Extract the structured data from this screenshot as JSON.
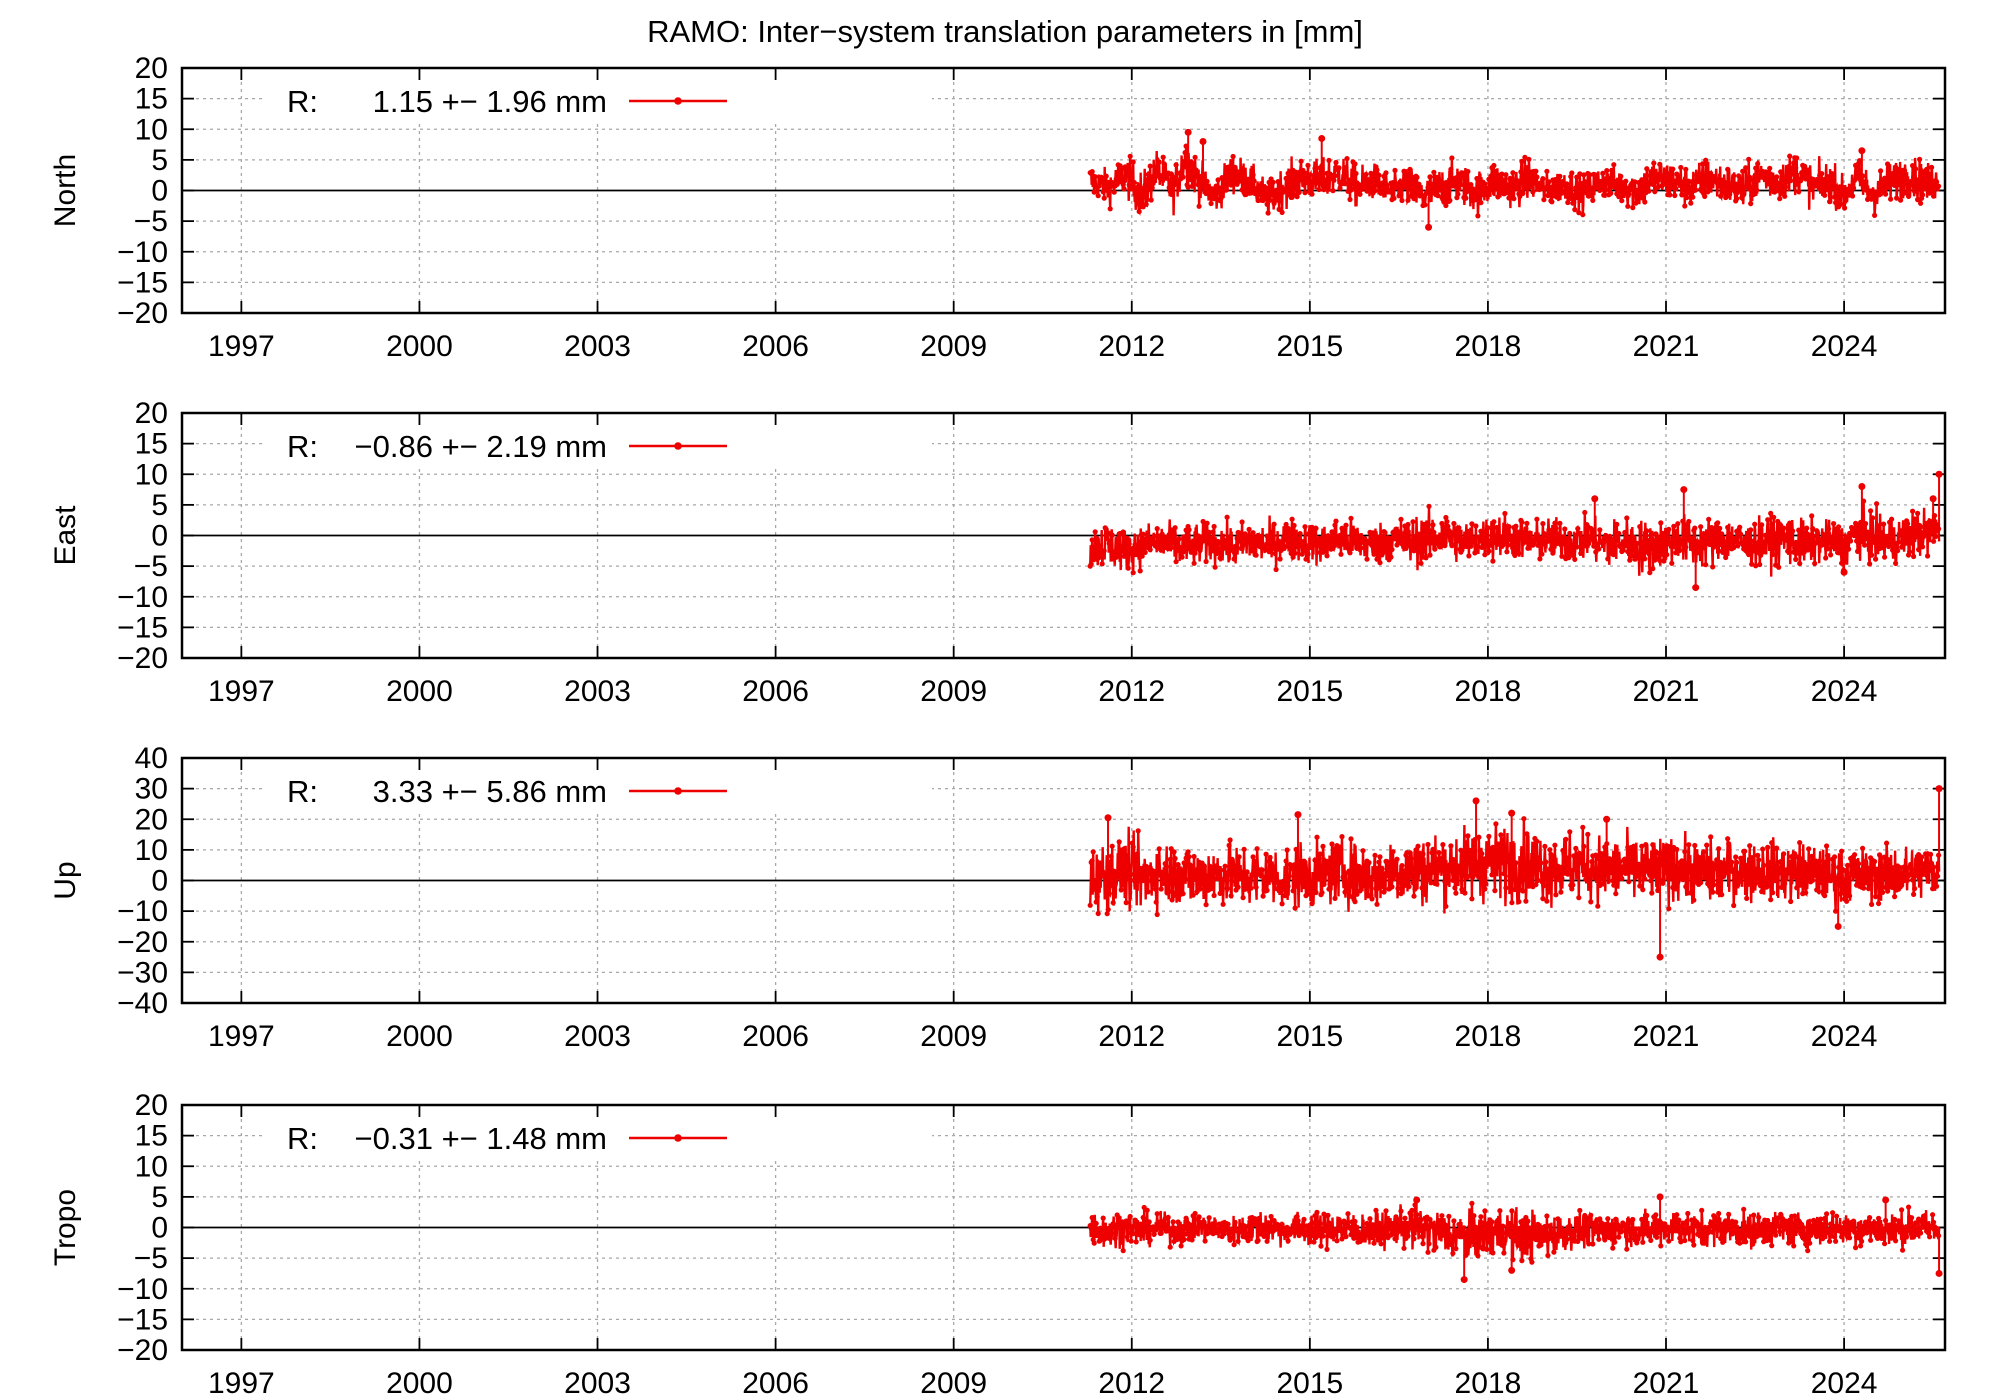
{
  "chart_data": {
    "title": "RAMO: Inter−system translation parameters in [mm]",
    "type": "line",
    "x_ticks": [
      1997,
      2000,
      2003,
      2006,
      2009,
      2012,
      2015,
      2018,
      2021,
      2024
    ],
    "xlim": [
      1996.0,
      2025.7
    ],
    "grid": true,
    "legend_placement": "top-left",
    "series_color": "#ee0000",
    "panels": [
      {
        "ylabel": "North",
        "ylim": [
          -20,
          20
        ],
        "y_ticks": [
          "20",
          "15",
          "10",
          "5",
          "0",
          "−5",
          "−10",
          "−15",
          "−20"
        ],
        "legend": {
          "prefix": "R:",
          "value": "1.15 +− 1.96 mm"
        },
        "series": {
          "name": "R",
          "x": [
            2011.3,
            2011.6,
            2011.9,
            2012.2,
            2012.4,
            2012.7,
            2012.9,
            2013.1,
            2013.4,
            2013.7,
            2014.0,
            2014.3,
            2014.6,
            2014.9,
            2015.2,
            2015.5,
            2015.8,
            2016.1,
            2016.4,
            2016.6,
            2016.9,
            2017.2,
            2017.5,
            2017.8,
            2018.1,
            2018.4,
            2018.7,
            2019.0,
            2019.3,
            2019.6,
            2019.9,
            2020.2,
            2020.5,
            2020.8,
            2021.1,
            2021.4,
            2021.7,
            2022.0,
            2022.3,
            2022.6,
            2022.9,
            2023.2,
            2023.5,
            2023.8,
            2024.0,
            2024.2,
            2024.5,
            2024.8,
            2025.1,
            2025.4,
            2025.6
          ],
          "y": [
            1.5,
            0.5,
            2.5,
            -1.0,
            3.5,
            0.0,
            5.5,
            2.0,
            -1.0,
            3.0,
            1.5,
            -1.5,
            1.0,
            2.0,
            1.5,
            3.0,
            0.5,
            1.5,
            -0.5,
            1.0,
            -1.0,
            0.5,
            1.5,
            -0.5,
            1.5,
            0.5,
            2.0,
            0.0,
            1.0,
            -0.5,
            1.5,
            1.0,
            0.0,
            2.0,
            1.5,
            0.5,
            2.0,
            1.0,
            0.0,
            2.5,
            1.5,
            3.0,
            0.5,
            1.5,
            -1.0,
            2.0,
            -0.5,
            1.5,
            2.5,
            1.0,
            1.5
          ],
          "spread": [
            2.5,
            2.5,
            3.0,
            3.5,
            3.0,
            3.0,
            3.5,
            3.0,
            2.5,
            3.0,
            2.5,
            2.5,
            3.0,
            3.0,
            3.0,
            3.0,
            3.0,
            2.5,
            2.5,
            3.0,
            3.0,
            3.0,
            3.0,
            3.0,
            3.0,
            3.0,
            3.0,
            2.5,
            2.5,
            2.5,
            2.5,
            2.5,
            3.0,
            3.0,
            3.0,
            3.0,
            3.0,
            3.0,
            3.0,
            3.0,
            3.0,
            3.0,
            3.0,
            3.0,
            2.5,
            3.0,
            3.0,
            3.0,
            3.0,
            3.0,
            2.5
          ],
          "outliers": [
            [
              2012.95,
              9.5
            ],
            [
              2013.2,
              8.0
            ],
            [
              2015.2,
              8.5
            ],
            [
              2017.0,
              -6.0
            ],
            [
              2024.3,
              6.5
            ]
          ]
        }
      },
      {
        "ylabel": "East",
        "ylim": [
          -20,
          20
        ],
        "y_ticks": [
          "20",
          "15",
          "10",
          "5",
          "0",
          "−5",
          "−10",
          "−15",
          "−20"
        ],
        "legend": {
          "prefix": "R:",
          "value": "−0.86 +− 2.19 mm"
        },
        "series": {
          "name": "R",
          "x": [
            2011.3,
            2011.6,
            2011.9,
            2012.2,
            2012.5,
            2012.8,
            2013.1,
            2013.4,
            2013.7,
            2014.0,
            2014.3,
            2014.6,
            2014.9,
            2015.2,
            2015.5,
            2015.8,
            2016.1,
            2016.4,
            2016.7,
            2017.0,
            2017.3,
            2017.6,
            2017.9,
            2018.2,
            2018.5,
            2018.8,
            2019.1,
            2019.4,
            2019.7,
            2020.0,
            2020.3,
            2020.6,
            2020.9,
            2021.2,
            2021.5,
            2021.8,
            2022.1,
            2022.4,
            2022.7,
            2023.0,
            2023.3,
            2023.6,
            2023.9,
            2024.0,
            2024.2,
            2024.5,
            2024.8,
            2025.1,
            2025.4,
            2025.6
          ],
          "y": [
            -2.0,
            -1.5,
            -2.5,
            -1.5,
            -1.0,
            -2.0,
            -1.5,
            -1.0,
            -2.0,
            -1.0,
            -1.5,
            -0.5,
            -1.0,
            -1.5,
            -0.5,
            -1.0,
            -1.5,
            -0.5,
            -1.0,
            -0.5,
            0.0,
            -1.0,
            -0.5,
            0.0,
            -0.5,
            -1.0,
            -0.5,
            -1.0,
            -0.5,
            -1.5,
            -1.0,
            -2.0,
            -1.5,
            -0.5,
            -1.5,
            -1.0,
            -0.5,
            -1.5,
            -1.0,
            -0.5,
            -1.5,
            -1.0,
            -1.0,
            -2.0,
            0.5,
            -0.5,
            -1.0,
            0.0,
            0.5,
            1.0
          ],
          "spread": [
            3.0,
            3.5,
            3.0,
            3.0,
            3.0,
            3.0,
            3.0,
            3.0,
            3.0,
            3.0,
            3.0,
            3.0,
            3.0,
            3.0,
            3.0,
            3.0,
            3.0,
            3.0,
            3.5,
            3.5,
            3.5,
            3.0,
            3.0,
            3.5,
            3.0,
            3.0,
            3.0,
            3.0,
            3.0,
            3.5,
            3.5,
            4.0,
            3.5,
            3.5,
            3.5,
            3.5,
            3.0,
            3.0,
            3.5,
            3.5,
            3.5,
            3.0,
            3.0,
            3.0,
            3.5,
            3.5,
            3.5,
            3.5,
            3.5,
            3.0
          ],
          "outliers": [
            [
              2019.8,
              6.0
            ],
            [
              2021.3,
              7.5
            ],
            [
              2021.5,
              -8.5
            ],
            [
              2024.0,
              -6.0
            ],
            [
              2024.3,
              8.0
            ],
            [
              2025.5,
              6.0
            ],
            [
              2025.6,
              10.0
            ]
          ]
        }
      },
      {
        "ylabel": "Up",
        "ylim": [
          -40,
          40
        ],
        "y_ticks": [
          "40",
          "30",
          "20",
          "10",
          "0",
          "−10",
          "−20",
          "−30",
          "−40"
        ],
        "legend": {
          "prefix": "R:",
          "value": "3.33 +− 5.86 mm"
        },
        "series": {
          "name": "R",
          "x": [
            2011.3,
            2011.6,
            2011.9,
            2012.2,
            2012.5,
            2012.8,
            2013.1,
            2013.4,
            2013.7,
            2014.0,
            2014.3,
            2014.6,
            2014.9,
            2015.2,
            2015.5,
            2015.8,
            2016.1,
            2016.4,
            2016.7,
            2017.0,
            2017.3,
            2017.6,
            2017.9,
            2018.2,
            2018.5,
            2018.8,
            2019.1,
            2019.4,
            2019.7,
            2020.0,
            2020.3,
            2020.6,
            2020.9,
            2021.2,
            2021.5,
            2021.8,
            2022.1,
            2022.4,
            2022.7,
            2023.0,
            2023.3,
            2023.6,
            2023.9,
            2024.0,
            2024.2,
            2024.5,
            2024.8,
            2025.1,
            2025.4,
            2025.6
          ],
          "y": [
            0.0,
            2.0,
            3.0,
            1.0,
            3.0,
            2.0,
            1.0,
            2.5,
            1.5,
            1.0,
            2.0,
            0.5,
            1.5,
            2.0,
            3.0,
            2.0,
            1.0,
            3.5,
            3.0,
            4.0,
            4.5,
            5.0,
            6.0,
            5.5,
            6.5,
            5.0,
            4.0,
            5.0,
            4.5,
            3.5,
            4.0,
            3.0,
            3.5,
            4.0,
            3.0,
            2.5,
            3.5,
            3.0,
            3.5,
            2.5,
            3.0,
            2.0,
            1.5,
            0.5,
            2.0,
            1.5,
            2.5,
            2.0,
            3.0,
            3.5
          ],
          "spread": [
            9.0,
            10.0,
            10.0,
            10.0,
            9.0,
            9.0,
            9.0,
            9.0,
            9.0,
            9.5,
            9.0,
            9.0,
            9.0,
            9.0,
            9.0,
            9.0,
            8.5,
            9.0,
            10.0,
            10.0,
            10.0,
            10.5,
            11.0,
            11.0,
            11.0,
            10.0,
            10.0,
            10.0,
            9.5,
            9.5,
            9.0,
            9.5,
            9.0,
            9.0,
            9.0,
            9.0,
            8.5,
            8.5,
            8.5,
            8.5,
            8.5,
            8.0,
            8.0,
            8.0,
            7.5,
            7.5,
            8.0,
            8.0,
            8.0,
            8.0
          ],
          "outliers": [
            [
              2011.6,
              20.5
            ],
            [
              2014.8,
              21.5
            ],
            [
              2017.8,
              26.0
            ],
            [
              2018.4,
              22.0
            ],
            [
              2020.0,
              20.0
            ],
            [
              2020.9,
              -25.0
            ],
            [
              2023.9,
              -15.0
            ],
            [
              2025.6,
              30.0
            ]
          ]
        }
      },
      {
        "ylabel": "Tropo",
        "ylim": [
          -20,
          20
        ],
        "y_ticks": [
          "20",
          "15",
          "10",
          "5",
          "0",
          "−5",
          "−10",
          "−15",
          "−20"
        ],
        "legend": {
          "prefix": "R:",
          "value": "−0.31 +− 1.48 mm"
        },
        "series": {
          "name": "R",
          "x": [
            2011.3,
            2011.6,
            2011.9,
            2012.2,
            2012.5,
            2012.8,
            2013.1,
            2013.4,
            2013.7,
            2014.0,
            2014.3,
            2014.6,
            2014.9,
            2015.2,
            2015.5,
            2015.8,
            2016.1,
            2016.4,
            2016.7,
            2017.0,
            2017.3,
            2017.6,
            2017.9,
            2018.2,
            2018.5,
            2018.8,
            2019.1,
            2019.4,
            2019.7,
            2020.0,
            2020.3,
            2020.6,
            2020.9,
            2021.2,
            2021.5,
            2021.8,
            2022.1,
            2022.4,
            2022.7,
            2023.0,
            2023.3,
            2023.6,
            2023.9,
            2024.0,
            2024.2,
            2024.5,
            2024.8,
            2025.1,
            2025.4,
            2025.6
          ],
          "y": [
            0.0,
            -0.5,
            0.0,
            -0.5,
            0.0,
            -0.5,
            0.0,
            0.0,
            -0.5,
            0.0,
            0.0,
            -0.5,
            0.0,
            -0.5,
            0.0,
            -0.5,
            -0.5,
            0.0,
            0.0,
            -0.5,
            -1.0,
            -1.5,
            -1.0,
            -0.5,
            -1.0,
            -1.5,
            -1.0,
            -0.5,
            -0.5,
            -0.5,
            0.0,
            -0.5,
            0.0,
            0.0,
            -0.5,
            0.0,
            0.0,
            -0.5,
            0.0,
            0.0,
            -0.5,
            0.0,
            0.0,
            -0.5,
            0.0,
            0.0,
            -0.5,
            0.0,
            0.0,
            -0.5
          ],
          "spread": [
            2.5,
            2.5,
            2.5,
            2.5,
            2.0,
            2.0,
            2.0,
            2.0,
            2.0,
            2.5,
            2.5,
            2.0,
            2.5,
            2.5,
            2.5,
            2.5,
            2.5,
            2.5,
            3.0,
            3.0,
            3.5,
            3.5,
            3.5,
            3.5,
            3.5,
            3.5,
            3.0,
            2.5,
            2.5,
            2.5,
            2.5,
            2.5,
            2.5,
            2.5,
            2.5,
            2.5,
            2.5,
            2.5,
            2.5,
            2.5,
            2.5,
            2.5,
            2.5,
            2.0,
            2.5,
            2.5,
            2.5,
            2.5,
            2.5,
            2.5
          ],
          "outliers": [
            [
              2016.8,
              4.5
            ],
            [
              2017.6,
              -8.5
            ],
            [
              2018.4,
              -7.0
            ],
            [
              2020.9,
              5.0
            ],
            [
              2024.7,
              4.5
            ],
            [
              2025.6,
              -7.5
            ]
          ]
        }
      }
    ]
  }
}
